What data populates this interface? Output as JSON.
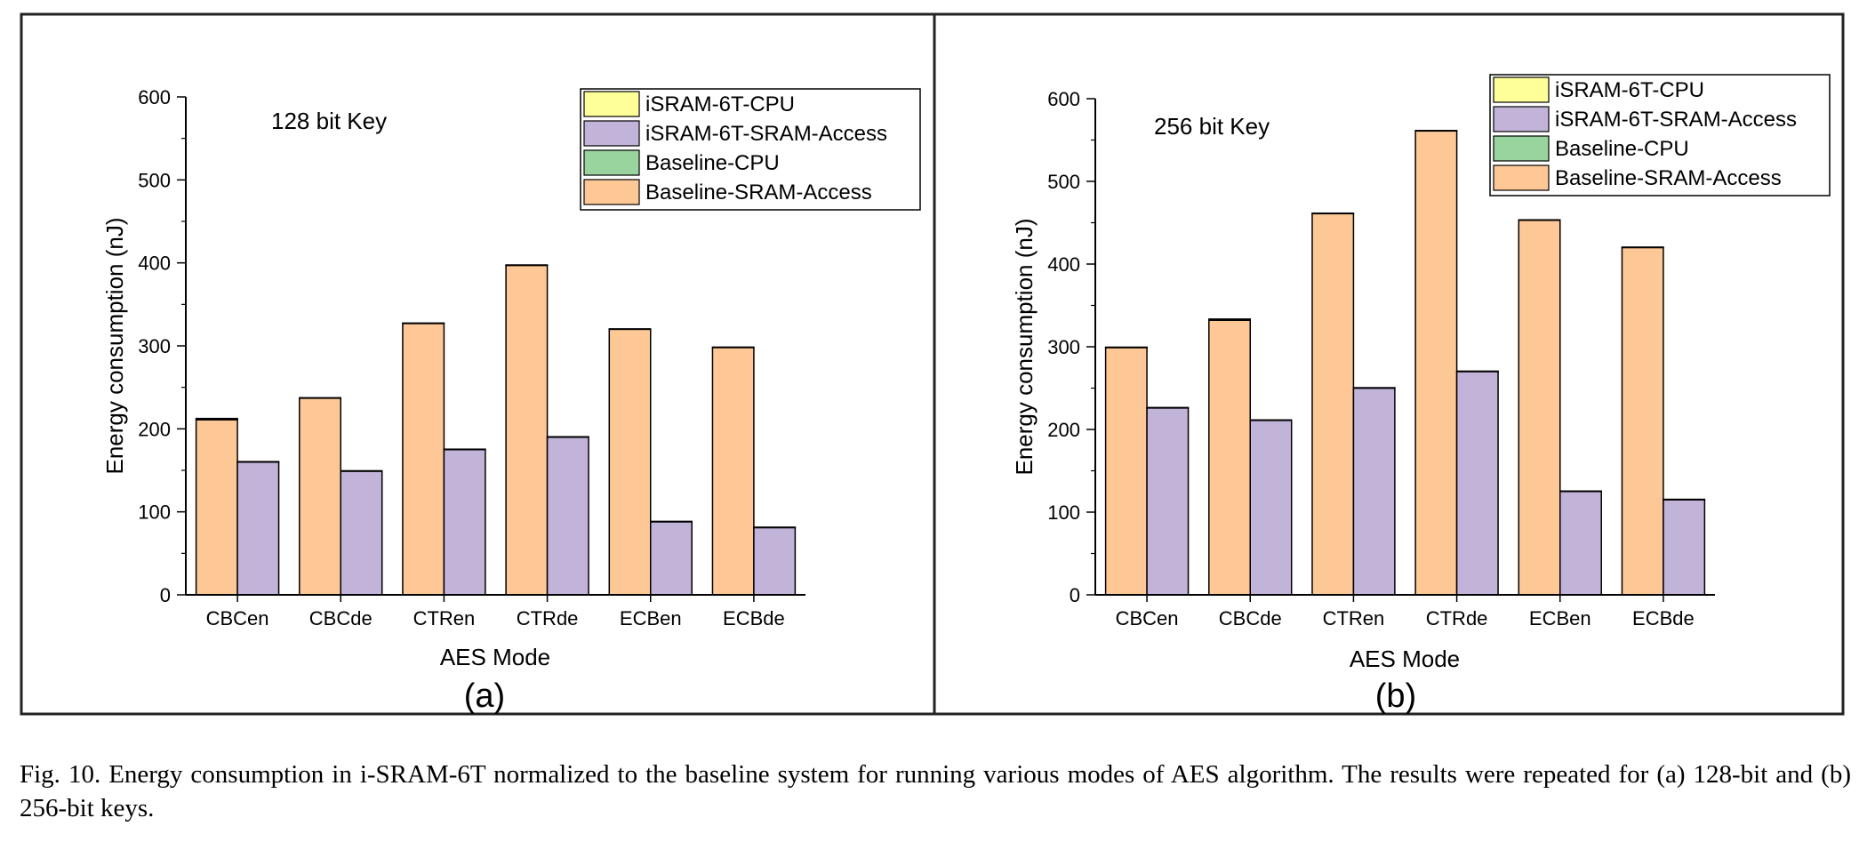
{
  "caption": "Fig. 10.   Energy consumption in i-SRAM-6T normalized to the baseline system for running various modes of AES algorithm. The results were repeated for (a) 128-bit and (b) 256-bit keys.",
  "colors": {
    "isram_cpu": "#ffff99",
    "isram_sram": "#c2b3d8",
    "baseline_cpu": "#99d39e",
    "baseline_sram": "#fdc896"
  },
  "legend": [
    "iSRAM-6T-CPU",
    "iSRAM-6T-SRAM-Access",
    "Baseline-CPU",
    "Baseline-SRAM-Access"
  ],
  "chart_data": [
    {
      "type": "bar",
      "panel_label": "(a)",
      "annotation": "128 bit Key",
      "xlabel": "AES Mode",
      "ylabel": "Energy consumption (nJ)",
      "ylim": [
        0,
        600
      ],
      "yticks": [
        0,
        100,
        200,
        300,
        400,
        500,
        600
      ],
      "categories": [
        "CBCen",
        "CBCde",
        "CTRen",
        "CTRde",
        "ECBen",
        "ECBde"
      ],
      "series": [
        {
          "name": "Baseline-SRAM-Access",
          "values": [
            211,
            237,
            327,
            397,
            320,
            298
          ]
        },
        {
          "name": "Baseline-CPU",
          "values": [
            1.5,
            0.5,
            0.5,
            0.5,
            0.5,
            0.5
          ]
        },
        {
          "name": "iSRAM-6T-SRAM-Access",
          "values": [
            160,
            149,
            175,
            190,
            88,
            81
          ]
        },
        {
          "name": "iSRAM-6T-CPU",
          "values": [
            0.5,
            0.5,
            0.5,
            0.5,
            0.5,
            0.5
          ]
        }
      ],
      "legend_position": "top-right"
    },
    {
      "type": "bar",
      "panel_label": "(b)",
      "annotation": "256 bit Key",
      "xlabel": "AES Mode",
      "ylabel": "Energy consumption (nJ)",
      "ylim": [
        0,
        600
      ],
      "yticks": [
        0,
        100,
        200,
        300,
        400,
        500,
        600
      ],
      "categories": [
        "CBCen",
        "CBCde",
        "CTRen",
        "CTRde",
        "ECBen",
        "ECBde"
      ],
      "series": [
        {
          "name": "Baseline-SRAM-Access",
          "values": [
            299,
            332,
            461,
            561,
            453,
            420
          ]
        },
        {
          "name": "Baseline-CPU",
          "values": [
            0.5,
            1.5,
            0.5,
            0.5,
            0.5,
            0.5
          ]
        },
        {
          "name": "iSRAM-6T-SRAM-Access",
          "values": [
            226,
            211,
            250,
            270,
            125,
            115
          ]
        },
        {
          "name": "iSRAM-6T-CPU",
          "values": [
            0.5,
            0.5,
            0.5,
            0.5,
            0.5,
            0.5
          ]
        }
      ],
      "legend_position": "top-right"
    }
  ]
}
